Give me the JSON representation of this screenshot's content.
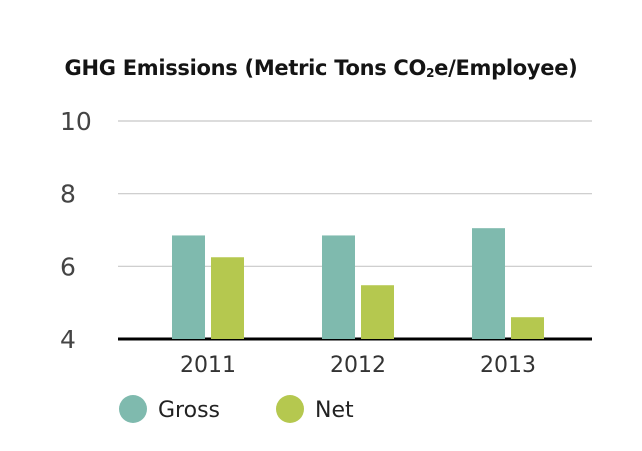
{
  "chart_data": {
    "type": "bar",
    "title_parts": [
      "GHG Emissions (Metric Tons CO",
      "2",
      "e/Employee)"
    ],
    "categories": [
      "2011",
      "2012",
      "2013"
    ],
    "series": [
      {
        "name": "Gross",
        "color": "#7fbaae",
        "values": [
          6.85,
          6.85,
          7.05
        ]
      },
      {
        "name": "Net",
        "color": "#b5c84f",
        "values": [
          6.25,
          5.48,
          4.6
        ]
      }
    ],
    "ylim": [
      4,
      10
    ],
    "yticks": [
      "4",
      "6",
      "8",
      "10"
    ],
    "grid": true,
    "legend_position": "bottom-left",
    "gridline_color": "#c8c8c8",
    "baseline_color": "#000000"
  }
}
